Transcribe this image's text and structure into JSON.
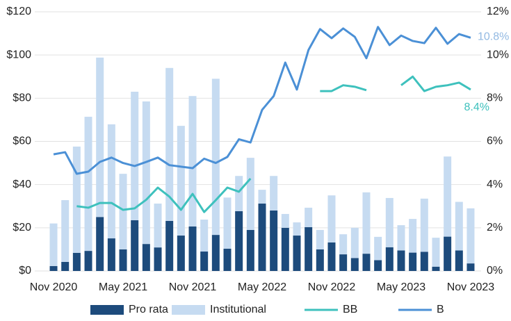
{
  "chart_data": {
    "type": "bar",
    "categories": [
      "Nov 2020",
      null,
      null,
      null,
      null,
      null,
      "May 2021",
      null,
      null,
      null,
      null,
      null,
      "Nov 2021",
      null,
      null,
      null,
      null,
      null,
      "May 2022",
      null,
      null,
      null,
      null,
      null,
      "Nov 2022",
      null,
      null,
      null,
      null,
      null,
      "May 2023",
      null,
      null,
      null,
      null,
      null,
      "Nov 2023"
    ],
    "series": [
      {
        "name": "Pro rata",
        "type": "bar",
        "color": "#1d4b7c",
        "values": [
          2.3,
          4.2,
          8.4,
          9.3,
          25,
          15.1,
          10,
          23.5,
          12.5,
          10.9,
          23.2,
          16.4,
          20.6,
          9,
          16.7,
          10.3,
          27.7,
          19,
          31.2,
          28,
          20,
          16.4,
          20.3,
          10,
          13.2,
          7.7,
          6,
          8,
          5,
          11,
          9.5,
          8.5,
          8.9,
          2,
          15.9,
          9.5,
          3.5
        ]
      },
      {
        "name": "Institutional",
        "type": "bar",
        "color": "#c6dbf1",
        "values": [
          19.7,
          28.6,
          49.2,
          62.1,
          73.8,
          52.8,
          35,
          59.5,
          66,
          20.3,
          70.8,
          50.8,
          60.4,
          14.8,
          72.3,
          23.7,
          16.3,
          33.4,
          6.4,
          16,
          6.4,
          6.1,
          9,
          9,
          21.8,
          9.3,
          14,
          28.4,
          10.8,
          22.8,
          11.7,
          15.6,
          24.6,
          13.4,
          37.1,
          22.5,
          25.5
        ]
      },
      {
        "name": "BB",
        "type": "line",
        "axis": "y2",
        "color": "#3ec1bd",
        "label_color": "#3ec1bd",
        "values": [
          null,
          null,
          3.0,
          2.93,
          3.15,
          3.15,
          2.83,
          2.9,
          3.3,
          3.86,
          3.44,
          2.83,
          3.57,
          2.73,
          3.28,
          3.86,
          3.67,
          4.28,
          null,
          null,
          null,
          null,
          null,
          8.33,
          8.33,
          8.6,
          8.53,
          8.37,
          null,
          null,
          8.6,
          9.0,
          8.33,
          8.53,
          8.6,
          8.72,
          8.4
        ],
        "value_labels": [
          null,
          null,
          null,
          null,
          null,
          null,
          null,
          null,
          null,
          null,
          null,
          null,
          null,
          null,
          null,
          null,
          null,
          null,
          null,
          null,
          null,
          null,
          null,
          null,
          null,
          null,
          null,
          null,
          null,
          null,
          null,
          null,
          null,
          null,
          null,
          null,
          "8.4%"
        ]
      },
      {
        "name": "B",
        "type": "line",
        "axis": "y2",
        "color": "#4b90d6",
        "label_color": "#92b9e2",
        "values": [
          5.4,
          5.5,
          4.5,
          4.6,
          5.05,
          5.25,
          5.0,
          4.86,
          5.05,
          5.25,
          4.9,
          4.83,
          4.76,
          5.2,
          5.0,
          5.28,
          6.1,
          5.95,
          7.46,
          8.1,
          9.65,
          8.4,
          10.23,
          11.2,
          10.78,
          11.23,
          10.84,
          9.85,
          11.3,
          10.46,
          10.9,
          10.65,
          10.55,
          11.26,
          10.52,
          10.97,
          10.8
        ],
        "value_labels": [
          null,
          null,
          null,
          null,
          null,
          null,
          null,
          null,
          null,
          null,
          null,
          null,
          null,
          null,
          null,
          null,
          null,
          null,
          null,
          null,
          null,
          null,
          null,
          null,
          null,
          null,
          null,
          null,
          null,
          null,
          null,
          null,
          null,
          null,
          null,
          null,
          "10.8%"
        ]
      }
    ],
    "ylim": [
      0,
      120
    ],
    "yticks": [
      {
        "value": 0,
        "label": "$0"
      },
      {
        "value": 20,
        "label": "$20"
      },
      {
        "value": 40,
        "label": "$40"
      },
      {
        "value": 60,
        "label": "$60"
      },
      {
        "value": 80,
        "label": "$80"
      },
      {
        "value": 100,
        "label": "$100"
      },
      {
        "value": 120,
        "label": "$120"
      }
    ],
    "y2lim": [
      0,
      12
    ],
    "y2ticks": [
      {
        "value": 0,
        "label": "0%"
      },
      {
        "value": 2,
        "label": "2%"
      },
      {
        "value": 4,
        "label": "4%"
      },
      {
        "value": 6,
        "label": "6%"
      },
      {
        "value": 8,
        "label": "8%"
      },
      {
        "value": 10,
        "label": "10%"
      },
      {
        "value": 12,
        "label": "12%"
      }
    ],
    "grid": true,
    "legend": "bottom"
  }
}
